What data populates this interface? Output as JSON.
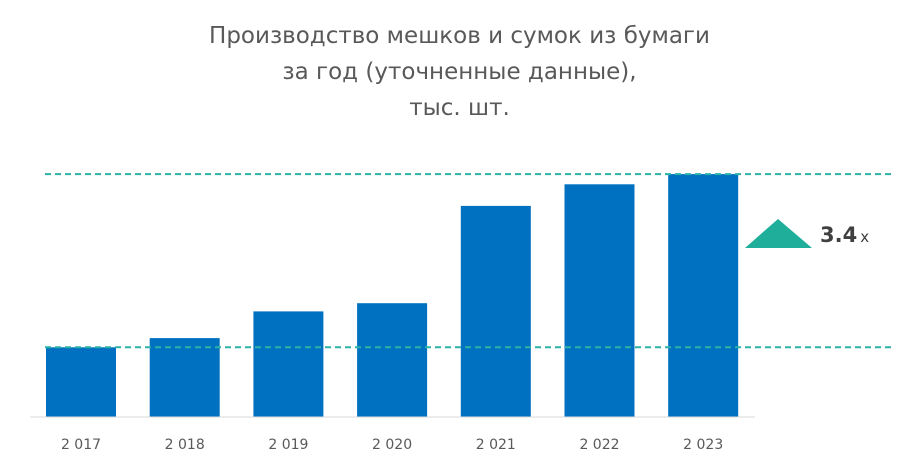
{
  "chart_data": {
    "type": "bar",
    "title_lines": [
      "Производство мешков и сумок из бумаги",
      "за год (уточненные данные),",
      "тыс. шт."
    ],
    "categories": [
      "2 017",
      "2 018",
      "2 019",
      "2 020",
      "2 021",
      "2 022",
      "2 023"
    ],
    "values": [
      68,
      77,
      103,
      111,
      206,
      227,
      237
    ],
    "ylim": [
      0,
      240
    ],
    "y_axis_visible": false,
    "grid": false,
    "reference_lines": [
      {
        "value": 68,
        "style": "dashed"
      },
      {
        "value": 237,
        "style": "dashed"
      }
    ],
    "growth_annotation": {
      "value": "3.4",
      "unit": "x",
      "marker": "up-triangle"
    }
  },
  "colors": {
    "bar": "#0070C0",
    "reference_line": "#2AB3A6",
    "triangle": "#1FAE9A",
    "text": "#595959"
  }
}
